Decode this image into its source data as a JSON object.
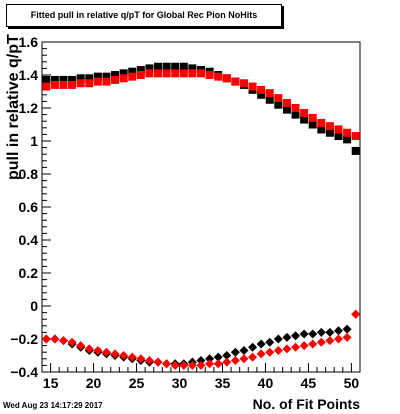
{
  "title": "Fitted pull in relative q/pT for Global Rec Pion NoHits",
  "timestamp": "Wed Aug 23 14:17:29 2017",
  "chart_data": {
    "type": "scatter",
    "xlabel": "No. of Fit Points",
    "ylabel": "pull in relative q/pT",
    "xlim": [
      14,
      51
    ],
    "ylim": [
      -0.4,
      1.6
    ],
    "x_ticks": [
      15,
      20,
      25,
      30,
      35,
      40,
      45,
      50
    ],
    "x_tick_labels": [
      "15",
      "20",
      "25",
      "30",
      "35",
      "40",
      "45",
      "50"
    ],
    "y_ticks": [
      -0.4,
      -0.2,
      0,
      0.2,
      0.4,
      0.6,
      0.8,
      1,
      1.2,
      1.4,
      1.6
    ],
    "y_tick_labels": [
      "−0.4",
      "−0.2",
      "0",
      "0.2",
      "0.4",
      "0.6",
      "0.8",
      "1",
      "1.2",
      "1.4",
      "1.6"
    ],
    "grid": false,
    "x": [
      14.5,
      15.5,
      16.5,
      17.5,
      18.5,
      19.5,
      20.5,
      21.5,
      22.5,
      23.5,
      24.5,
      25.5,
      26.5,
      27.5,
      28.5,
      29.5,
      30.5,
      31.5,
      32.5,
      33.5,
      34.5,
      35.5,
      36.5,
      37.5,
      38.5,
      39.5,
      40.5,
      41.5,
      42.5,
      43.5,
      44.5,
      45.5,
      46.5,
      47.5,
      48.5,
      49.5,
      50.5
    ],
    "series": [
      {
        "marker": "square",
        "color": "#000000",
        "values": [
          1.37,
          1.37,
          1.37,
          1.37,
          1.38,
          1.38,
          1.39,
          1.39,
          1.4,
          1.41,
          1.42,
          1.43,
          1.44,
          1.45,
          1.45,
          1.45,
          1.45,
          1.44,
          1.43,
          1.42,
          1.4,
          1.38,
          1.36,
          1.34,
          1.31,
          1.28,
          1.25,
          1.22,
          1.19,
          1.16,
          1.13,
          1.1,
          1.07,
          1.05,
          1.03,
          1.01,
          0.94
        ]
      },
      {
        "marker": "square",
        "color": "#ff0000",
        "values": [
          1.33,
          1.34,
          1.34,
          1.34,
          1.35,
          1.35,
          1.36,
          1.36,
          1.37,
          1.38,
          1.39,
          1.4,
          1.41,
          1.41,
          1.41,
          1.41,
          1.41,
          1.41,
          1.41,
          1.4,
          1.39,
          1.38,
          1.36,
          1.35,
          1.33,
          1.31,
          1.29,
          1.26,
          1.23,
          1.2,
          1.17,
          1.14,
          1.11,
          1.09,
          1.07,
          1.05,
          1.03
        ]
      },
      {
        "marker": "diamond",
        "color": "#000000",
        "values": [
          -0.2,
          -0.2,
          -0.21,
          -0.23,
          -0.25,
          -0.27,
          -0.28,
          -0.29,
          -0.3,
          -0.31,
          -0.32,
          -0.33,
          -0.34,
          -0.34,
          -0.35,
          -0.35,
          -0.35,
          -0.34,
          -0.33,
          -0.32,
          -0.31,
          -0.3,
          -0.28,
          -0.27,
          -0.25,
          -0.23,
          -0.22,
          -0.2,
          -0.19,
          -0.18,
          -0.17,
          -0.17,
          -0.16,
          -0.16,
          -0.15,
          -0.14,
          -0.05
        ]
      },
      {
        "marker": "diamond",
        "color": "#ff0000",
        "values": [
          -0.2,
          -0.2,
          -0.21,
          -0.22,
          -0.24,
          -0.26,
          -0.27,
          -0.28,
          -0.29,
          -0.3,
          -0.31,
          -0.32,
          -0.33,
          -0.34,
          -0.35,
          -0.36,
          -0.36,
          -0.36,
          -0.36,
          -0.35,
          -0.35,
          -0.34,
          -0.33,
          -0.32,
          -0.31,
          -0.29,
          -0.28,
          -0.27,
          -0.26,
          -0.25,
          -0.24,
          -0.23,
          -0.22,
          -0.21,
          -0.2,
          -0.19,
          -0.05
        ]
      }
    ]
  }
}
